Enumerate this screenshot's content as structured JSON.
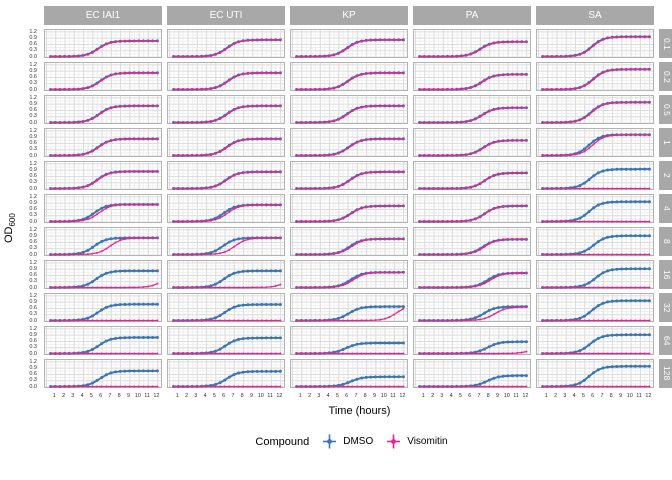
{
  "axes": {
    "y_title_main": "OD",
    "y_title_sub": "600",
    "x_title": "Time (hours)",
    "y_tick_labels": [
      "1.2",
      "0.9",
      "0.6",
      "0.3",
      "0.0"
    ],
    "x_tick_labels": [
      "1",
      "2",
      "3",
      "4",
      "5",
      "6",
      "7",
      "8",
      "9",
      "10",
      "11",
      "12"
    ]
  },
  "legend": {
    "title": "Compound",
    "items": [
      {
        "label": "DMSO",
        "color": "#3B75B2"
      },
      {
        "label": "Visomitin",
        "color": "#EC2290"
      }
    ]
  },
  "colors": {
    "dmso": "#3B75B2",
    "visomitin": "#EC2290",
    "strip_bg": "#A8A8A8",
    "strip_text": "#FFFFFF",
    "grid_major": "#DCDCDC",
    "grid_minor": "#EFEFEF",
    "panel_border": "#B3B3B3",
    "tick_text": "#333333"
  },
  "chart_data": {
    "type": "line",
    "description": "Faceted bacterial growth curves (OD600 vs time) for 5 strains (columns) at 11 compound concentrations (rows), comparing DMSO vs Visomitin.",
    "facet_columns": [
      "EC IAI1",
      "EC UTI",
      "KP",
      "PA",
      "SA"
    ],
    "facet_rows": [
      "0.1",
      "0.2",
      "0.5",
      "1",
      "2",
      "4",
      "8",
      "16",
      "32",
      "64",
      "128"
    ],
    "xlabel": "Time (hours)",
    "ylabel": "OD600",
    "xlim": [
      0,
      12.5
    ],
    "ylim": [
      -0.06,
      1.32
    ],
    "x_tick_values": [
      1,
      2,
      3,
      4,
      5,
      6,
      7,
      8,
      9,
      10,
      11,
      12
    ],
    "y_tick_values": [
      0.0,
      0.3,
      0.6,
      0.9,
      1.2
    ],
    "grid": "fine graph-paper major+minor",
    "legend_position": "bottom",
    "series": [
      {
        "name": "DMSO",
        "color": "#3B75B2"
      },
      {
        "name": "Visomitin",
        "color": "#EC2290"
      }
    ],
    "series_model": "od(t) = base + (plateau - base) / (1 + exp(-k*(t - midpoint))); midpoint null means flat at base (no growth)",
    "base_od": 0.06,
    "k": 1.6,
    "sample_step_hours": 0.5,
    "columns": [
      {
        "name": "EC IAI1",
        "panels": [
          {
            "conc": "0.1",
            "dmso": [
              5.6,
              0.8
            ],
            "visomitin": [
              5.7,
              0.8
            ]
          },
          {
            "conc": "0.2",
            "dmso": [
              5.8,
              0.85
            ],
            "visomitin": [
              5.9,
              0.85
            ]
          },
          {
            "conc": "0.5",
            "dmso": [
              5.7,
              0.85
            ],
            "visomitin": [
              5.8,
              0.85
            ]
          },
          {
            "conc": "1",
            "dmso": [
              5.6,
              0.85
            ],
            "visomitin": [
              5.7,
              0.85
            ]
          },
          {
            "conc": "2",
            "dmso": [
              5.5,
              0.87
            ],
            "visomitin": [
              5.6,
              0.87
            ]
          },
          {
            "conc": "4",
            "dmso": [
              5.2,
              0.87
            ],
            "visomitin": [
              5.7,
              0.87
            ]
          },
          {
            "conc": "8",
            "dmso": [
              5.2,
              0.85
            ],
            "visomitin": [
              6.9,
              0.85
            ]
          },
          {
            "conc": "16",
            "dmso": [
              5.4,
              0.85
            ],
            "visomitin": [
              12.8,
              0.9
            ]
          },
          {
            "conc": "32",
            "dmso": [
              5.6,
              0.83
            ],
            "visomitin": [
              null,
              0.07
            ]
          },
          {
            "conc": "64",
            "dmso": [
              5.7,
              0.82
            ],
            "visomitin": [
              null,
              0.07
            ]
          },
          {
            "conc": "128",
            "dmso": [
              5.8,
              0.8
            ],
            "visomitin": [
              null,
              0.07
            ]
          }
        ]
      },
      {
        "name": "EC UTI",
        "panels": [
          {
            "conc": "0.1",
            "dmso": [
              6.2,
              0.85
            ],
            "visomitin": [
              6.3,
              0.85
            ]
          },
          {
            "conc": "0.2",
            "dmso": [
              6.3,
              0.85
            ],
            "visomitin": [
              6.4,
              0.85
            ]
          },
          {
            "conc": "0.5",
            "dmso": [
              6.2,
              0.85
            ],
            "visomitin": [
              6.3,
              0.85
            ]
          },
          {
            "conc": "1",
            "dmso": [
              6.2,
              0.85
            ],
            "visomitin": [
              6.3,
              0.85
            ]
          },
          {
            "conc": "2",
            "dmso": [
              6.1,
              0.85
            ],
            "visomitin": [
              6.2,
              0.85
            ]
          },
          {
            "conc": "4",
            "dmso": [
              5.9,
              0.85
            ],
            "visomitin": [
              6.3,
              0.85
            ]
          },
          {
            "conc": "8",
            "dmso": [
              5.8,
              0.85
            ],
            "visomitin": [
              7.1,
              0.85
            ]
          },
          {
            "conc": "16",
            "dmso": [
              5.9,
              0.85
            ],
            "visomitin": [
              13.0,
              0.9
            ]
          },
          {
            "conc": "32",
            "dmso": [
              6.0,
              0.82
            ],
            "visomitin": [
              null,
              0.07
            ]
          },
          {
            "conc": "64",
            "dmso": [
              6.1,
              0.8
            ],
            "visomitin": [
              null,
              0.07
            ]
          },
          {
            "conc": "128",
            "dmso": [
              6.2,
              0.78
            ],
            "visomitin": [
              null,
              0.07
            ]
          }
        ]
      },
      {
        "name": "KP",
        "panels": [
          {
            "conc": "0.1",
            "dmso": [
              5.9,
              0.85
            ],
            "visomitin": [
              6.0,
              0.85
            ]
          },
          {
            "conc": "0.2",
            "dmso": [
              6.0,
              0.85
            ],
            "visomitin": [
              6.1,
              0.85
            ]
          },
          {
            "conc": "0.5",
            "dmso": [
              5.9,
              0.85
            ],
            "visomitin": [
              6.0,
              0.85
            ]
          },
          {
            "conc": "1",
            "dmso": [
              6.1,
              0.85
            ],
            "visomitin": [
              6.2,
              0.85
            ]
          },
          {
            "conc": "2",
            "dmso": [
              6.2,
              0.85
            ],
            "visomitin": [
              6.3,
              0.85
            ]
          },
          {
            "conc": "4",
            "dmso": [
              6.3,
              0.8
            ],
            "visomitin": [
              6.4,
              0.8
            ]
          },
          {
            "conc": "8",
            "dmso": [
              6.2,
              0.8
            ],
            "visomitin": [
              6.4,
              0.8
            ]
          },
          {
            "conc": "16",
            "dmso": [
              6.3,
              0.78
            ],
            "visomitin": [
              6.6,
              0.78
            ]
          },
          {
            "conc": "32",
            "dmso": [
              6.1,
              0.72
            ],
            "visomitin": [
              11.3,
              0.8
            ]
          },
          {
            "conc": "64",
            "dmso": [
              5.8,
              0.56
            ],
            "visomitin": [
              null,
              0.07
            ]
          },
          {
            "conc": "128",
            "dmso": [
              6.3,
              0.52
            ],
            "visomitin": [
              null,
              0.07
            ]
          }
        ]
      },
      {
        "name": "PA",
        "panels": [
          {
            "conc": "0.1",
            "dmso": [
              7.0,
              0.76
            ],
            "visomitin": [
              7.1,
              0.76
            ]
          },
          {
            "conc": "0.2",
            "dmso": [
              7.2,
              0.78
            ],
            "visomitin": [
              7.3,
              0.78
            ]
          },
          {
            "conc": "0.5",
            "dmso": [
              7.2,
              0.76
            ],
            "visomitin": [
              7.3,
              0.76
            ]
          },
          {
            "conc": "1",
            "dmso": [
              7.3,
              0.78
            ],
            "visomitin": [
              7.4,
              0.78
            ]
          },
          {
            "conc": "2",
            "dmso": [
              7.5,
              0.8
            ],
            "visomitin": [
              7.5,
              0.82
            ]
          },
          {
            "conc": "4",
            "dmso": [
              7.5,
              0.8
            ],
            "visomitin": [
              7.6,
              0.82
            ]
          },
          {
            "conc": "8",
            "dmso": [
              7.3,
              0.78
            ],
            "visomitin": [
              7.5,
              0.8
            ]
          },
          {
            "conc": "16",
            "dmso": [
              7.8,
              0.75
            ],
            "visomitin": [
              8.1,
              0.75
            ]
          },
          {
            "conc": "32",
            "dmso": [
              7.4,
              0.72
            ],
            "visomitin": [
              8.6,
              0.7
            ]
          },
          {
            "conc": "64",
            "dmso": [
              7.8,
              0.62
            ],
            "visomitin": [
              13.0,
              0.6
            ]
          },
          {
            "conc": "128",
            "dmso": [
              7.8,
              0.58
            ],
            "visomitin": [
              null,
              0.07
            ]
          }
        ]
      },
      {
        "name": "SA",
        "panels": [
          {
            "conc": "0.1",
            "dmso": [
              5.8,
              1.0
            ],
            "visomitin": [
              5.9,
              1.0
            ]
          },
          {
            "conc": "0.2",
            "dmso": [
              5.9,
              1.02
            ],
            "visomitin": [
              6.0,
              1.02
            ]
          },
          {
            "conc": "0.5",
            "dmso": [
              5.7,
              1.02
            ],
            "visomitin": [
              5.8,
              1.02
            ]
          },
          {
            "conc": "1",
            "dmso": [
              5.5,
              1.05
            ],
            "visomitin": [
              5.9,
              1.05
            ]
          },
          {
            "conc": "2",
            "dmso": [
              5.6,
              0.98
            ],
            "visomitin": [
              null,
              0.07
            ]
          },
          {
            "conc": "4",
            "dmso": [
              5.5,
              1.0
            ],
            "visomitin": [
              null,
              0.07
            ]
          },
          {
            "conc": "8",
            "dmso": [
              6.0,
              0.95
            ],
            "visomitin": [
              null,
              0.07
            ]
          },
          {
            "conc": "16",
            "dmso": [
              6.2,
              0.95
            ],
            "visomitin": [
              null,
              0.07
            ]
          },
          {
            "conc": "32",
            "dmso": [
              5.8,
              1.0
            ],
            "visomitin": [
              null,
              0.07
            ]
          },
          {
            "conc": "64",
            "dmso": [
              5.6,
              0.95
            ],
            "visomitin": [
              null,
              0.07
            ]
          },
          {
            "conc": "128",
            "dmso": [
              5.5,
              1.02
            ],
            "visomitin": [
              null,
              0.07
            ]
          }
        ]
      }
    ]
  }
}
